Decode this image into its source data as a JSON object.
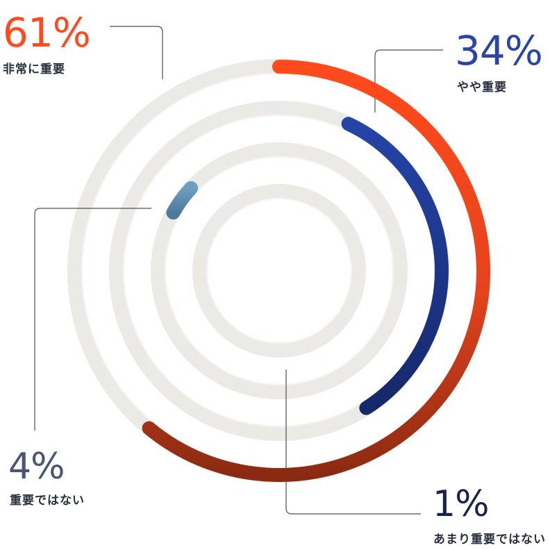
{
  "chart_data": {
    "type": "radial-bar",
    "unit": "%",
    "categories": [
      "非常に重要",
      "やや重要",
      "重要ではない",
      "あまり重要ではない"
    ],
    "values": [
      61,
      34,
      4,
      1
    ],
    "labels": [
      "61%",
      "34%",
      "4%",
      "1%"
    ],
    "colors": {
      "非常に重要": "#ff4a1c",
      "やや重要": "#1f3f9f",
      "重要ではない": "#5b8fb0",
      "あまり重要ではない": "#16244f"
    },
    "label_colors": {
      "非常に重要": "#ff4a1c",
      "やや重要": "#2a45a6",
      "重要ではない": "#4a5474",
      "あまり重要ではない": "#1a2348"
    },
    "track_color": "#ebeae7",
    "range": [
      0,
      100
    ]
  }
}
